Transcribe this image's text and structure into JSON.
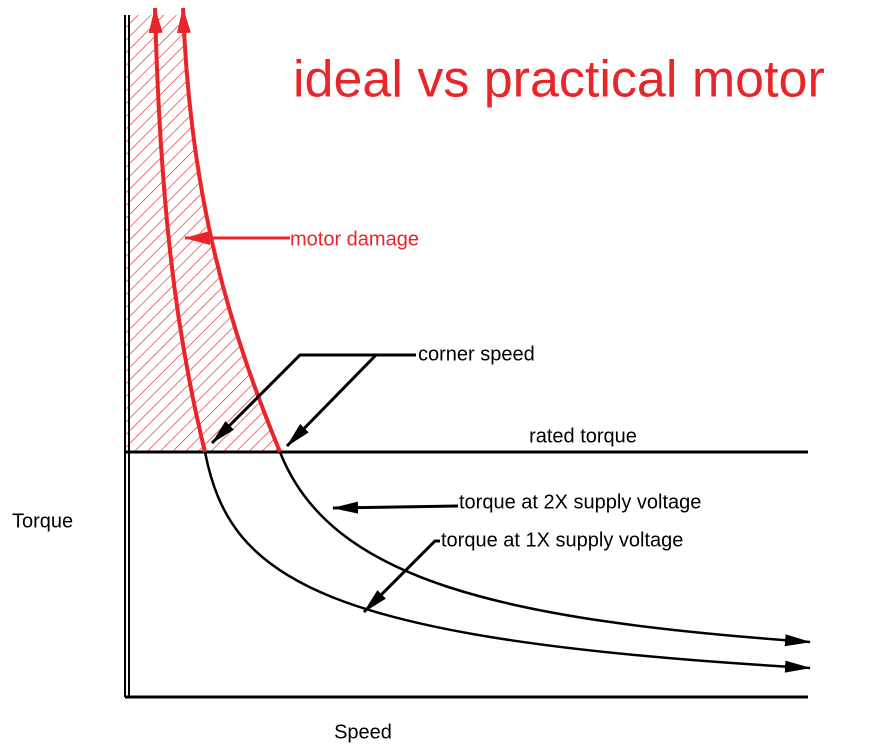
{
  "title": "ideal vs practical motor",
  "labels": {
    "motor_damage": "motor damage",
    "corner_speed": "corner speed",
    "rated_torque": "rated torque",
    "torque_2x": "torque at 2X supply voltage",
    "torque_1x": "torque at 1X supply voltage"
  },
  "axes": {
    "y": "Torque",
    "x": "Speed"
  }
}
